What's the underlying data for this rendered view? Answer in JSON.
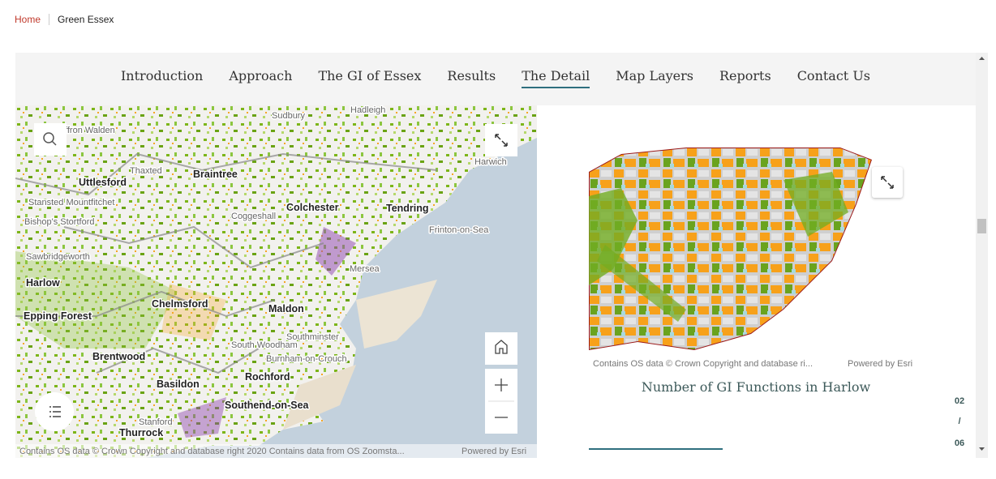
{
  "breadcrumb": {
    "home": "Home",
    "current": "Green Essex"
  },
  "nav": {
    "items": [
      "Introduction",
      "Approach",
      "The GI of Essex",
      "Results",
      "The Detail",
      "Map Layers",
      "Reports",
      "Contact Us"
    ],
    "active": 4
  },
  "main_map": {
    "labels": [
      "Hadleigh",
      "Sudbury",
      "ffron Walden",
      "Thaxted",
      "Braintree",
      "Uttlesford",
      "Stansted Mountfitchet",
      "Bishop's Stortford",
      "Coggeshall",
      "Colchester",
      "Tendring",
      "Frinton-on-Sea",
      "Harwich",
      "Sawbridgeworth",
      "Mersea",
      "Harlow",
      "Chelmsford",
      "Maldon",
      "Epping Forest",
      "Southminster",
      "South Woodham",
      "Brentwood",
      "Burnham-on-Crouch",
      "Rochford",
      "Basildon",
      "Southend-on-Sea",
      "Stanford",
      "Thurrock"
    ],
    "attribution": "Contains OS data © Crown Copyright and database right 2020 Contains data from OS Zoomsta...",
    "powered_by": "Powered by Esri"
  },
  "detail_map": {
    "attribution": "Contains OS data © Crown Copyright and database ri...",
    "powered_by": "Powered by Esri",
    "caption": "Number of GI Functions in Harlow"
  },
  "pager": {
    "current": "02",
    "separator": "/",
    "total": "06"
  }
}
